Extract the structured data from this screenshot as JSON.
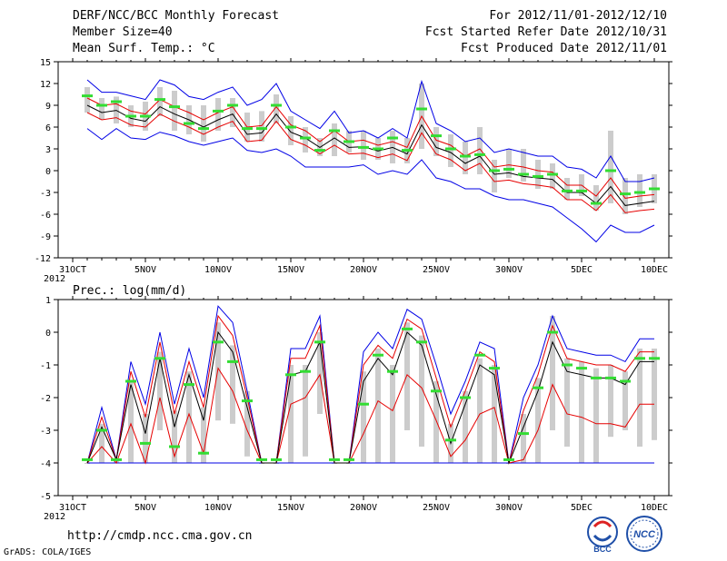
{
  "header": {
    "title": "DERF/NCC/BCC Monthly Forecast",
    "member_size": "Member Size=40",
    "variable": "Mean Surf. Temp.: °C",
    "period": "For 2012/11/01-2012/12/10",
    "refer_date": "Fcst Started Refer Date 2012/10/31",
    "produced_date": "Fcst Produced Date 2012/11/01"
  },
  "footer": {
    "url": "http://cmdp.ncc.cma.gov.cn",
    "credit": "GrADS: COLA/IGES",
    "logo_left_text": "BCC",
    "logo_right_text": "NCC"
  },
  "colors": {
    "mean_line": "#000000",
    "envelope": "#0000e6",
    "spread": "#e60000",
    "median_marker": "#33dd33",
    "box": "#cccccc"
  },
  "chart_data": [
    {
      "type": "line",
      "title": "Mean Surf. Temp.: °C",
      "xlabel_ticks": [
        "31OCT",
        "5NOV",
        "10NOV",
        "15NOV",
        "20NOV",
        "25NOV",
        "30NOV",
        "5DEC",
        "10DEC"
      ],
      "year_label": "2012",
      "x_range": [
        0,
        40
      ],
      "ylim": [
        -12,
        15
      ],
      "yticks": [
        -12,
        -9,
        -6,
        -3,
        0,
        3,
        6,
        9,
        12,
        15
      ],
      "days": [
        1,
        2,
        3,
        4,
        5,
        6,
        7,
        8,
        9,
        10,
        11,
        12,
        13,
        14,
        15,
        16,
        17,
        18,
        19,
        20,
        21,
        22,
        23,
        24,
        25,
        26,
        27,
        28,
        29,
        30,
        31,
        32,
        33,
        34,
        35,
        36,
        37,
        38,
        39,
        40
      ],
      "series": [
        {
          "name": "max",
          "values": [
            12.5,
            10.8,
            10.8,
            10.3,
            9.8,
            12.5,
            11.8,
            10.2,
            9.8,
            10.8,
            11.5,
            9.0,
            9.8,
            12.0,
            8.2,
            7.0,
            5.8,
            8.2,
            5.2,
            5.5,
            4.5,
            5.8,
            4.5,
            12.3,
            6.5,
            5.5,
            4.0,
            4.5,
            2.5,
            3.0,
            2.5,
            2.0,
            2.0,
            0.5,
            0.2,
            -1.0,
            2.0,
            -1.5,
            -1.5,
            -1.0
          ]
        },
        {
          "name": "upper",
          "values": [
            10.0,
            9.0,
            9.2,
            8.2,
            7.8,
            9.8,
            8.8,
            8.0,
            7.0,
            8.0,
            8.8,
            6.0,
            6.2,
            8.8,
            6.3,
            5.5,
            4.0,
            5.5,
            4.0,
            4.2,
            3.5,
            4.0,
            3.2,
            7.5,
            4.2,
            3.5,
            2.0,
            3.0,
            0.5,
            0.8,
            0.5,
            0.0,
            -0.2,
            -2.0,
            -2.0,
            -3.5,
            -1.0,
            -3.8,
            -3.5,
            -3.3
          ]
        },
        {
          "name": "mean",
          "values": [
            9.0,
            8.0,
            8.3,
            7.2,
            6.8,
            8.8,
            7.8,
            7.0,
            6.0,
            7.0,
            7.8,
            5.0,
            5.2,
            7.8,
            5.3,
            4.5,
            3.2,
            4.5,
            3.2,
            3.3,
            2.7,
            3.2,
            2.3,
            6.3,
            3.2,
            2.5,
            1.0,
            2.0,
            -0.5,
            -0.3,
            -0.8,
            -1.0,
            -1.2,
            -3.0,
            -3.0,
            -4.5,
            -2.2,
            -4.8,
            -4.5,
            -4.2
          ]
        },
        {
          "name": "lower",
          "values": [
            8.0,
            7.0,
            7.3,
            6.3,
            6.0,
            7.8,
            6.8,
            6.0,
            5.0,
            6.0,
            6.8,
            4.0,
            4.2,
            6.8,
            4.3,
            3.5,
            2.3,
            3.5,
            2.3,
            2.4,
            1.8,
            2.3,
            1.4,
            5.2,
            2.3,
            1.5,
            0.0,
            1.0,
            -1.5,
            -1.3,
            -1.8,
            -2.0,
            -2.3,
            -4.0,
            -4.0,
            -5.5,
            -3.3,
            -5.8,
            -5.5,
            -5.3
          ]
        },
        {
          "name": "min",
          "values": [
            5.8,
            4.3,
            5.8,
            4.5,
            4.3,
            5.3,
            4.8,
            4.0,
            3.5,
            4.0,
            4.5,
            2.8,
            2.5,
            3.0,
            2.0,
            0.5,
            0.5,
            0.5,
            0.5,
            0.8,
            -0.5,
            0.0,
            -0.5,
            1.5,
            -1.0,
            -1.5,
            -2.5,
            -2.5,
            -3.5,
            -4.0,
            -4.0,
            -4.5,
            -5.0,
            -6.5,
            -8.0,
            -9.8,
            -7.5,
            -8.5,
            -8.5,
            -7.5
          ]
        },
        {
          "name": "median",
          "values": [
            10.3,
            9.0,
            9.5,
            7.5,
            7.5,
            9.8,
            8.8,
            6.5,
            5.8,
            8.2,
            9.0,
            5.8,
            5.8,
            9.0,
            6.0,
            4.5,
            2.8,
            5.5,
            4.0,
            3.2,
            3.0,
            4.5,
            2.8,
            8.5,
            4.8,
            3.0,
            2.0,
            2.2,
            0.0,
            0.2,
            -0.5,
            -0.8,
            -0.5,
            -2.8,
            -2.8,
            -4.5,
            0.0,
            -3.2,
            -3.0,
            -2.5
          ]
        },
        {
          "name": "box_top",
          "values": [
            11.5,
            10.0,
            10.2,
            9.0,
            9.5,
            11.5,
            11.0,
            9.0,
            9.0,
            10.0,
            10.0,
            8.0,
            8.2,
            10.5,
            7.5,
            6.0,
            4.5,
            6.5,
            5.5,
            5.5,
            4.5,
            5.5,
            4.5,
            12.0,
            6.0,
            5.0,
            4.0,
            6.0,
            1.5,
            3.0,
            3.0,
            1.5,
            1.0,
            -1.0,
            -0.5,
            -2.0,
            5.5,
            -1.0,
            -0.5,
            -0.5
          ]
        },
        {
          "name": "box_bottom",
          "values": [
            8.0,
            7.0,
            6.5,
            6.0,
            5.5,
            7.5,
            5.5,
            5.0,
            4.0,
            5.5,
            6.0,
            4.0,
            4.0,
            6.5,
            3.5,
            2.5,
            2.0,
            2.0,
            2.5,
            1.5,
            1.5,
            1.0,
            1.0,
            3.0,
            2.0,
            0.5,
            -0.5,
            -0.5,
            -3.0,
            -1.0,
            -1.5,
            -2.5,
            -2.5,
            -4.0,
            -3.5,
            -5.5,
            -4.5,
            -6.0,
            -5.0,
            -4.5
          ]
        }
      ]
    },
    {
      "type": "line",
      "title": "Prec.: log(mm/d)",
      "xlabel_ticks": [
        "31OCT",
        "5NOV",
        "10NOV",
        "15NOV",
        "20NOV",
        "25NOV",
        "30NOV",
        "5DEC",
        "10DEC"
      ],
      "year_label": "2012",
      "x_range": [
        0,
        40
      ],
      "ylim": [
        -5,
        1
      ],
      "yticks": [
        -5,
        -4,
        -3,
        -2,
        -1,
        0,
        1
      ],
      "days": [
        1,
        2,
        3,
        4,
        5,
        6,
        7,
        8,
        9,
        10,
        11,
        12,
        13,
        14,
        15,
        16,
        17,
        18,
        19,
        20,
        21,
        22,
        23,
        24,
        25,
        26,
        27,
        28,
        29,
        30,
        31,
        32,
        33,
        34,
        35,
        36,
        37,
        38,
        39,
        40
      ],
      "series": [
        {
          "name": "max",
          "values": [
            -4.0,
            -2.3,
            -3.9,
            -0.9,
            -2.2,
            0.0,
            -2.2,
            -0.5,
            -2.0,
            0.8,
            0.3,
            -1.8,
            -4.0,
            -4.0,
            -0.5,
            -0.5,
            0.5,
            -4.0,
            -4.0,
            -0.6,
            0.0,
            -0.5,
            0.7,
            0.4,
            -1.0,
            -2.5,
            -1.5,
            -0.3,
            -0.5,
            -4.0,
            -2.0,
            -1.0,
            0.5,
            -0.5,
            -0.6,
            -0.7,
            -0.7,
            -0.9,
            -0.2,
            -0.2
          ]
        },
        {
          "name": "upper",
          "values": [
            -4.0,
            -2.6,
            -3.9,
            -1.2,
            -2.6,
            -0.3,
            -2.5,
            -0.9,
            -2.3,
            0.5,
            -0.1,
            -2.0,
            -4.0,
            -4.0,
            -0.8,
            -0.8,
            0.2,
            -4.0,
            -4.0,
            -1.0,
            -0.4,
            -0.8,
            0.4,
            0.1,
            -1.4,
            -2.9,
            -1.8,
            -0.6,
            -0.9,
            -4.0,
            -2.4,
            -1.3,
            0.2,
            -0.8,
            -0.9,
            -1.0,
            -1.0,
            -1.2,
            -0.6,
            -0.6
          ]
        },
        {
          "name": "mean",
          "values": [
            -4.0,
            -2.9,
            -3.9,
            -1.6,
            -3.1,
            -0.8,
            -2.9,
            -1.3,
            -2.7,
            0.0,
            -0.6,
            -2.3,
            -4.0,
            -4.0,
            -1.3,
            -1.2,
            -0.3,
            -4.0,
            -4.0,
            -1.5,
            -0.8,
            -1.3,
            0.0,
            -0.4,
            -1.9,
            -3.4,
            -2.2,
            -1.0,
            -1.3,
            -4.0,
            -2.9,
            -1.8,
            -0.3,
            -1.2,
            -1.3,
            -1.4,
            -1.4,
            -1.6,
            -0.9,
            -0.9
          ]
        },
        {
          "name": "lower",
          "values": [
            -4.0,
            -3.5,
            -4.0,
            -2.8,
            -4.0,
            -2.0,
            -3.8,
            -2.5,
            -3.7,
            -1.1,
            -1.8,
            -3.0,
            -4.0,
            -4.0,
            -2.2,
            -2.0,
            -1.3,
            -4.0,
            -4.0,
            -3.1,
            -2.1,
            -2.4,
            -1.3,
            -1.7,
            -2.7,
            -3.8,
            -3.3,
            -2.5,
            -2.3,
            -4.0,
            -3.9,
            -3.0,
            -1.6,
            -2.5,
            -2.6,
            -2.8,
            -2.8,
            -2.9,
            -2.2,
            -2.2
          ]
        },
        {
          "name": "min",
          "values": [
            -4.0,
            -4.0,
            -4.0,
            -4.0,
            -4.0,
            -4.0,
            -4.0,
            -4.0,
            -4.0,
            -4.0,
            -4.0,
            -4.0,
            -4.0,
            -4.0,
            -4.0,
            -4.0,
            -4.0,
            -4.0,
            -4.0,
            -4.0,
            -4.0,
            -4.0,
            -4.0,
            -4.0,
            -4.0,
            -4.0,
            -4.0,
            -4.0,
            -4.0,
            -4.0,
            -4.0,
            -4.0,
            -4.0,
            -4.0,
            -4.0,
            -4.0,
            -4.0,
            -4.0,
            -4.0,
            -4.0
          ]
        },
        {
          "name": "median",
          "values": [
            -3.9,
            -3.0,
            -3.9,
            -1.5,
            -3.4,
            -0.8,
            -3.5,
            -1.6,
            -3.7,
            -0.3,
            -0.9,
            -2.1,
            -3.9,
            -3.9,
            -1.3,
            -1.2,
            -0.3,
            -3.9,
            -3.9,
            -2.2,
            -0.7,
            -1.2,
            0.1,
            -0.3,
            -1.8,
            -3.3,
            -2.0,
            -0.7,
            -1.1,
            -3.9,
            -3.1,
            -1.7,
            0.0,
            -1.0,
            -1.1,
            -1.4,
            -1.4,
            -1.5,
            -0.8,
            -0.8
          ]
        },
        {
          "name": "box_top",
          "values": [
            -4.0,
            -2.8,
            -3.9,
            -1.5,
            -2.5,
            -0.6,
            -2.4,
            -1.2,
            -2.3,
            0.3,
            -0.4,
            -1.8,
            -4.0,
            -4.0,
            -1.0,
            -1.0,
            0.0,
            -4.0,
            -4.0,
            -1.2,
            -0.5,
            -1.0,
            0.3,
            -0.1,
            -1.5,
            -2.8,
            -1.8,
            -0.8,
            -1.0,
            -4.0,
            -2.5,
            -1.4,
            0.5,
            -0.8,
            -0.9,
            -1.1,
            -1.0,
            -1.2,
            -0.5,
            -0.5
          ]
        },
        {
          "name": "box_bottom",
          "values": [
            -4.0,
            -4.0,
            -4.0,
            -4.0,
            -4.0,
            -3.0,
            -4.0,
            -4.0,
            -4.0,
            -2.7,
            -2.8,
            -3.8,
            -4.0,
            -4.0,
            -4.0,
            -3.8,
            -2.5,
            -4.0,
            -4.0,
            -4.0,
            -4.0,
            -4.0,
            -3.0,
            -3.5,
            -4.0,
            -4.0,
            -4.0,
            -4.0,
            -4.0,
            -4.0,
            -4.0,
            -4.0,
            -3.0,
            -3.5,
            -4.0,
            -4.0,
            -3.2,
            -3.0,
            -3.5,
            -3.3
          ]
        }
      ]
    }
  ]
}
